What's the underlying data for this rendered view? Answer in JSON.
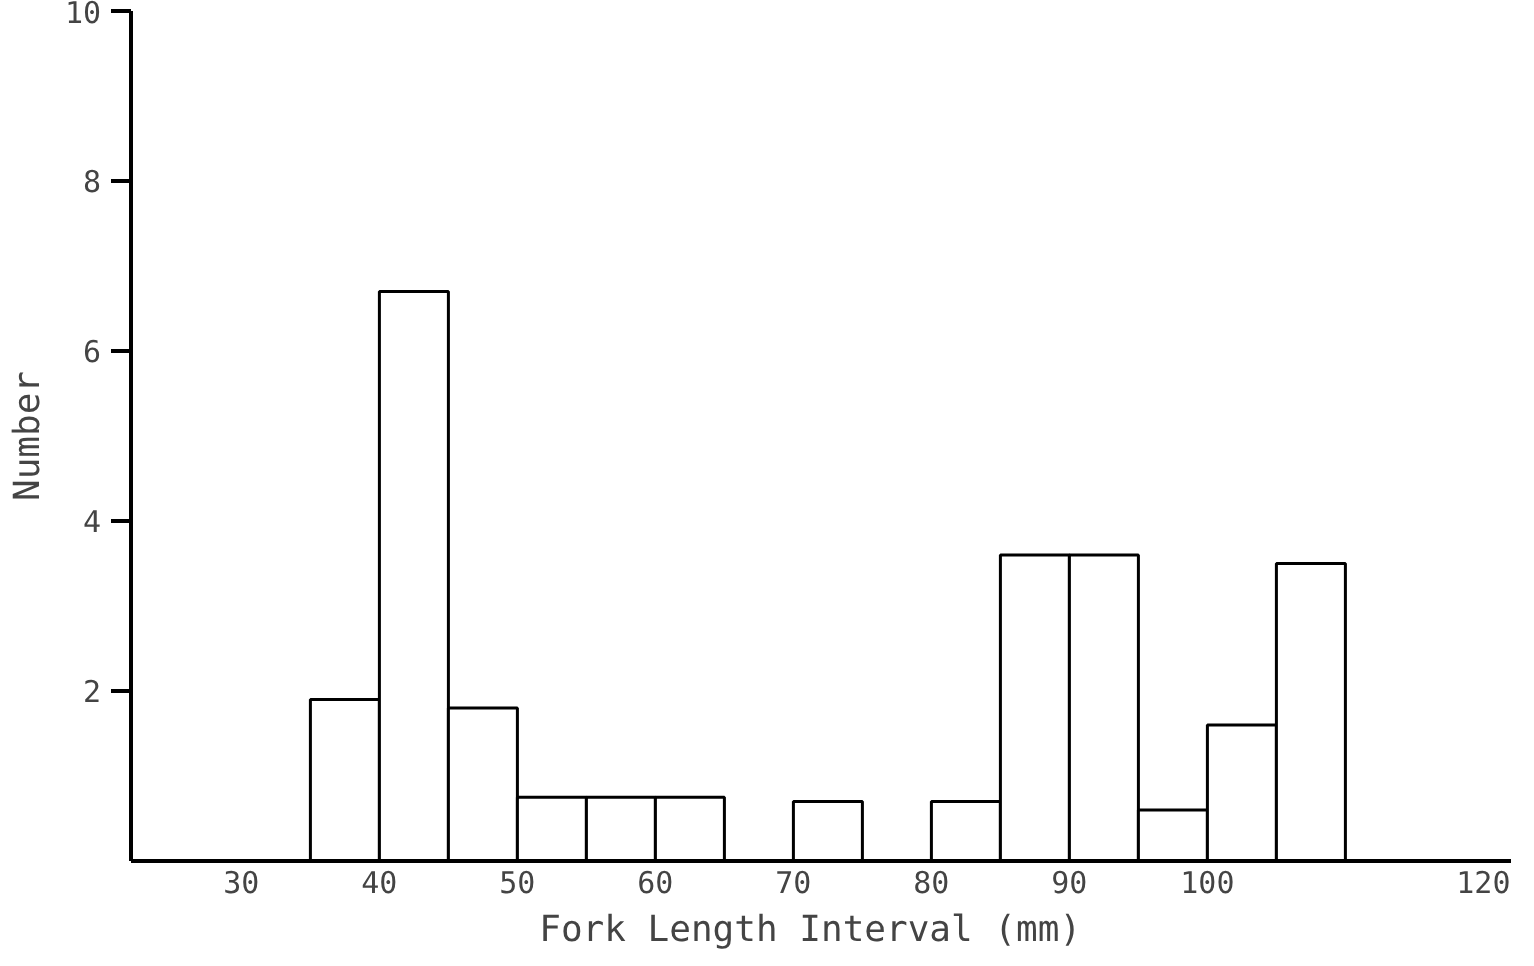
{
  "chart_data": {
    "type": "histogram",
    "xlabel": "Fork Length Interval  (mm)",
    "ylabel": "Number",
    "bins": [
      35,
      40,
      45,
      50,
      55,
      60,
      65,
      70,
      75,
      80,
      85,
      90,
      95,
      100,
      105,
      110
    ],
    "values": [
      1.9,
      6.7,
      1.8,
      0.75,
      0.75,
      0.75,
      null,
      0.7,
      null,
      0.7,
      3.6,
      3.6,
      0.6,
      1.6,
      3.5
    ],
    "color": "#ffffff",
    "xlim": [
      22,
      122
    ],
    "xticks": [
      30,
      40,
      50,
      60,
      70,
      80,
      90,
      100,
      120
    ],
    "ylim": [
      0,
      10
    ],
    "yticks": [
      2,
      4,
      6,
      8,
      10
    ],
    "grid": false
  }
}
